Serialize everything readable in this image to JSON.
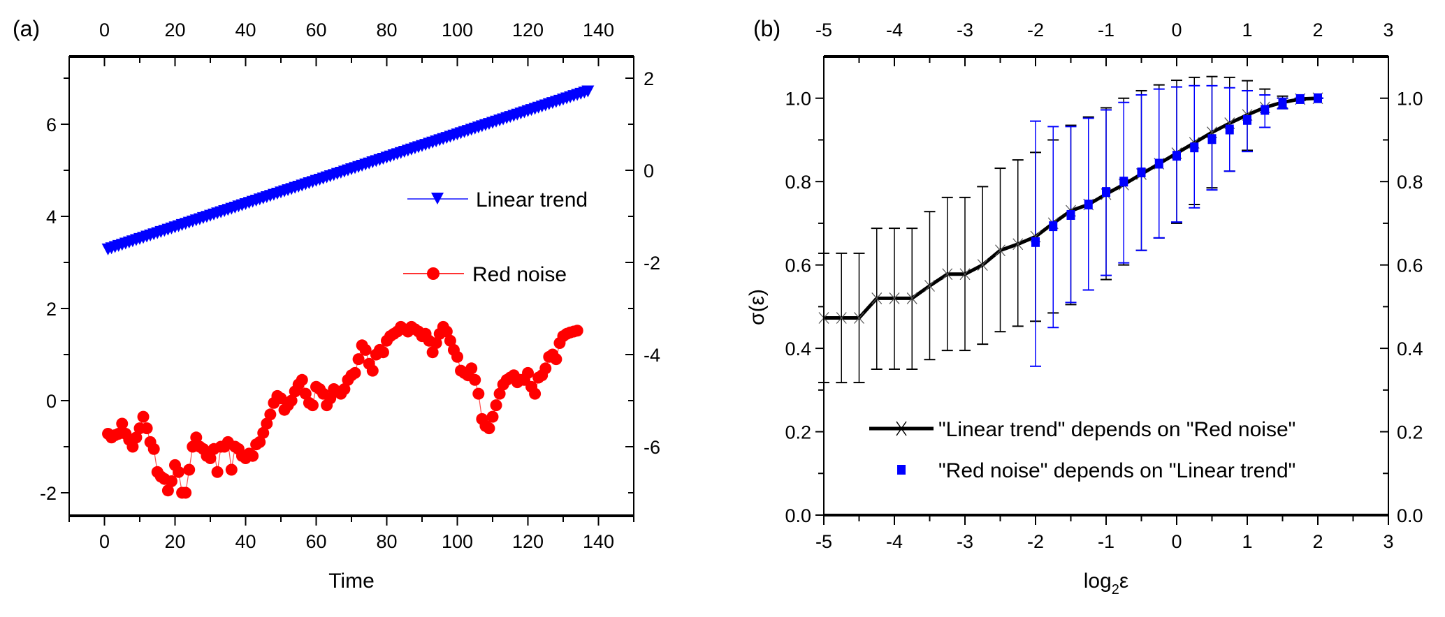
{
  "chart_data": [
    {
      "panel": "(a)",
      "type": "line",
      "xlabel": "Time",
      "ylabel": "",
      "xlim": [
        -10,
        150
      ],
      "ylim": [
        -2.5,
        7.47
      ],
      "y2lim": [
        -7.5,
        2.47
      ],
      "x_ticks": [
        0,
        20,
        40,
        60,
        80,
        100,
        120,
        140
      ],
      "x_tick_labels": [
        "0",
        "20",
        "40",
        "60",
        "80",
        "100",
        "120",
        "140"
      ],
      "top_x_tick_labels": [
        "0",
        "20",
        "40",
        "60",
        "80",
        "100",
        "120",
        "140"
      ],
      "y_ticks": [
        -2,
        0,
        2,
        4,
        6
      ],
      "y_tick_labels": [
        "-2",
        "0",
        "2",
        "4",
        "6"
      ],
      "y2_ticks": [
        -6,
        -4,
        -2,
        0,
        2
      ],
      "y2_tick_labels": [
        "-6",
        "-4",
        "-2",
        "0",
        "2"
      ],
      "legend_position": "center-right",
      "series": [
        {
          "name": "Linear trend",
          "axis": "left",
          "color": "#0000ff",
          "marker": "down-triangle",
          "x_start": 1,
          "x_end": 137,
          "y_start": 3.29,
          "y_end": 6.72
        },
        {
          "name": "Red noise",
          "axis": "left",
          "color": "#ff0000",
          "marker": "circle",
          "x_start": 1,
          "values": [
            -0.72,
            -0.8,
            -0.75,
            -0.72,
            -0.5,
            -0.72,
            -0.85,
            -1.0,
            -0.8,
            -0.6,
            -0.35,
            -0.6,
            -0.9,
            -1.05,
            -1.55,
            -1.65,
            -1.7,
            -1.95,
            -1.75,
            -1.4,
            -1.55,
            -2.0,
            -2.0,
            -1.5,
            -1.0,
            -0.8,
            -1.0,
            -1.05,
            -1.2,
            -1.25,
            -1.05,
            -1.55,
            -1.0,
            -1.0,
            -0.9,
            -1.5,
            -1.0,
            -1.05,
            -1.2,
            -1.25,
            -1.15,
            -1.2,
            -0.95,
            -0.9,
            -0.7,
            -0.5,
            -0.3,
            -0.05,
            0.1,
            0.05,
            -0.2,
            -0.1,
            0.0,
            0.2,
            0.35,
            0.45,
            0.15,
            -0.05,
            -0.1,
            0.3,
            0.25,
            0.15,
            -0.1,
            0.05,
            0.25,
            0.2,
            0.15,
            0.25,
            0.45,
            0.55,
            0.6,
            0.9,
            1.2,
            1.1,
            0.8,
            0.65,
            1.0,
            1.1,
            1.05,
            1.3,
            1.4,
            1.45,
            1.5,
            1.6,
            1.55,
            1.5,
            1.6,
            1.55,
            1.5,
            1.4,
            1.45,
            1.3,
            1.05,
            1.25,
            1.45,
            1.6,
            1.5,
            1.3,
            1.1,
            0.95,
            0.65,
            0.6,
            0.55,
            0.7,
            0.45,
            0.15,
            -0.4,
            -0.55,
            -0.6,
            -0.35,
            -0.1,
            0.15,
            0.35,
            0.45,
            0.5,
            0.55,
            0.4,
            0.45,
            0.45,
            0.6,
            0.3,
            0.15,
            0.5,
            0.55,
            0.7,
            0.95,
            1.0,
            0.9,
            1.25,
            1.4,
            1.45,
            1.48,
            1.5,
            1.52
          ]
        }
      ],
      "legend": [
        "Linear trend",
        "Red noise"
      ]
    },
    {
      "panel": "(b)",
      "type": "line",
      "xlabel": "log₂ε",
      "xlabel_base": "log",
      "xlabel_sub": "2",
      "xlabel_tail": "ε",
      "ylabel": "σ(ε)",
      "xlim": [
        -5,
        3
      ],
      "ylim": [
        0.0,
        1.1
      ],
      "x_ticks": [
        -5,
        -4,
        -3,
        -2,
        -1,
        0,
        1,
        2,
        3
      ],
      "x_tick_labels": [
        "-5",
        "-4",
        "-3",
        "-2",
        "-1",
        "0",
        "1",
        "2",
        "3"
      ],
      "top_x_tick_labels": [
        "-5",
        "-4",
        "-3",
        "-2",
        "-1",
        "0",
        "1",
        "2",
        "3"
      ],
      "y_ticks": [
        0.0,
        0.2,
        0.4,
        0.6,
        0.8,
        1.0
      ],
      "y_tick_labels": [
        "0.0",
        "0.2",
        "0.4",
        "0.6",
        "0.8",
        "1.0"
      ],
      "y2_tick_labels": [
        "0.0",
        "0.2",
        "0.4",
        "0.6",
        "0.8",
        "1.0"
      ],
      "legend_position": "bottom-right",
      "series": [
        {
          "name": "\"Linear trend\" depends on \"Red noise\"",
          "color": "#000000",
          "marker": "x",
          "x": [
            -5,
            -4.75,
            -4.5,
            -4.25,
            -4,
            -3.75,
            -3.5,
            -3.25,
            -3,
            -2.75,
            -2.5,
            -2.25,
            -2,
            -1.75,
            -1.5,
            -1.25,
            -1,
            -0.75,
            -0.5,
            -0.25,
            0,
            0.25,
            0.5,
            0.75,
            1,
            1.25,
            1.5,
            1.75,
            2
          ],
          "y": [
            0.473,
            0.473,
            0.473,
            0.52,
            0.52,
            0.52,
            0.55,
            0.578,
            0.578,
            0.6,
            0.635,
            0.65,
            0.668,
            0.7,
            0.73,
            0.745,
            0.77,
            0.793,
            0.818,
            0.843,
            0.868,
            0.893,
            0.918,
            0.94,
            0.96,
            0.978,
            0.99,
            0.998,
            1.0
          ],
          "err_low": [
            0.318,
            0.318,
            0.318,
            0.35,
            0.35,
            0.35,
            0.373,
            0.395,
            0.395,
            0.41,
            0.44,
            0.453,
            0.465,
            0.485,
            0.505,
            0.54,
            0.565,
            0.6,
            0.635,
            0.665,
            0.7,
            0.745,
            0.785,
            0.825,
            0.875,
            0.93,
            0.975,
            0.995,
            1.0
          ],
          "err_high": [
            0.628,
            0.628,
            0.628,
            0.688,
            0.688,
            0.688,
            0.728,
            0.762,
            0.762,
            0.788,
            0.832,
            0.852,
            0.87,
            0.9,
            0.935,
            0.955,
            0.977,
            1.0,
            1.018,
            1.032,
            1.043,
            1.05,
            1.052,
            1.05,
            1.042,
            1.022,
            1.005,
            1.0,
            1.0
          ]
        },
        {
          "name": "\"Red noise\" depends on \"Linear trend\"",
          "color": "#0000ff",
          "marker": "square",
          "x": [
            -2,
            -1.75,
            -1.5,
            -1.25,
            -1,
            -0.75,
            -0.5,
            -0.25,
            0,
            0.25,
            0.5,
            0.75,
            1,
            1.25,
            1.5,
            1.75,
            2
          ],
          "y": [
            0.655,
            0.693,
            0.72,
            0.745,
            0.775,
            0.8,
            0.822,
            0.843,
            0.862,
            0.882,
            0.902,
            0.925,
            0.948,
            0.972,
            0.987,
            0.998,
            1.0
          ],
          "err_low": [
            0.357,
            0.45,
            0.51,
            0.54,
            0.575,
            0.605,
            0.635,
            0.665,
            0.703,
            0.737,
            0.78,
            0.825,
            0.872,
            0.93,
            0.975,
            0.998,
            1.0
          ],
          "err_high": [
            0.945,
            0.932,
            0.932,
            0.952,
            0.972,
            0.99,
            1.008,
            1.022,
            1.027,
            1.03,
            1.03,
            1.025,
            1.018,
            1.008,
            1.0,
            1.0,
            1.0
          ]
        }
      ],
      "legend": [
        "\"Linear trend\" depends on \"Red noise\"",
        "\"Red noise\" depends on \"Linear trend\""
      ]
    }
  ]
}
